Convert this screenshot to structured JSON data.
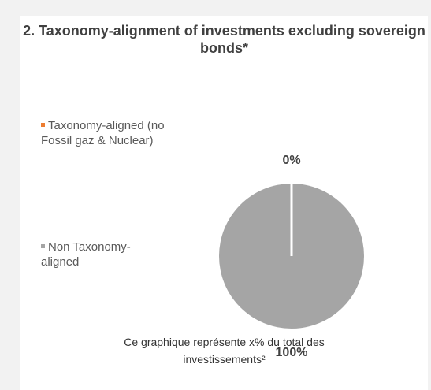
{
  "chart_data": {
    "type": "pie",
    "title": "2. Taxonomy-alignment of investments excluding sovereign bonds*",
    "categories": [
      "Taxonomy-aligned (no Fossil gaz & Nuclear)",
      "Non Taxonomy-aligned"
    ],
    "values": [
      0,
      100
    ],
    "data_labels": [
      "0%",
      "100%"
    ],
    "colors": [
      "#ed7d31",
      "#a5a5a5"
    ],
    "legend_position": "left"
  },
  "footnote": {
    "line1": "Ce graphique représente x% du total des",
    "line2": "investissements²"
  }
}
